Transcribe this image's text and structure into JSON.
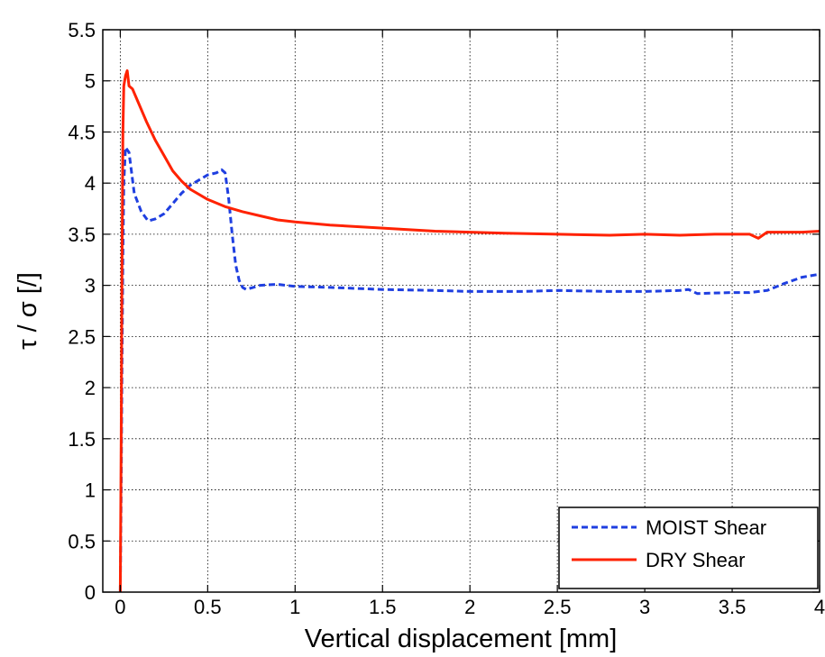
{
  "chart_data": {
    "type": "line",
    "title": "",
    "xlabel": "Vertical displacement [mm]",
    "ylabel": "τ / σ [/]",
    "xlim": [
      -0.1,
      4
    ],
    "ylim": [
      0,
      5.5
    ],
    "grid": true,
    "legend_position": "bottom-right",
    "x_ticks": [
      {
        "value": 0,
        "label": "0"
      },
      {
        "value": 0.5,
        "label": "0.5"
      },
      {
        "value": 1,
        "label": "1"
      },
      {
        "value": 1.5,
        "label": "1.5"
      },
      {
        "value": 2,
        "label": "2"
      },
      {
        "value": 2.5,
        "label": "2.5"
      },
      {
        "value": 3,
        "label": "3"
      },
      {
        "value": 3.5,
        "label": "3.5"
      },
      {
        "value": 4,
        "label": "4"
      }
    ],
    "y_ticks": [
      {
        "value": 0,
        "label": "0"
      },
      {
        "value": 0.5,
        "label": "0.5"
      },
      {
        "value": 1,
        "label": "1"
      },
      {
        "value": 1.5,
        "label": "1.5"
      },
      {
        "value": 2,
        "label": "2"
      },
      {
        "value": 2.5,
        "label": "2.5"
      },
      {
        "value": 3,
        "label": "3"
      },
      {
        "value": 3.5,
        "label": "3.5"
      },
      {
        "value": 4,
        "label": "4"
      },
      {
        "value": 4.5,
        "label": "4.5"
      },
      {
        "value": 5,
        "label": "5"
      },
      {
        "value": 5.5,
        "label": "5.5"
      }
    ],
    "series": [
      {
        "name": "MOIST Shear",
        "color": "#1f3fe0",
        "dash": "dashed",
        "x": [
          0,
          0.005,
          0.01,
          0.015,
          0.02,
          0.03,
          0.05,
          0.08,
          0.12,
          0.16,
          0.2,
          0.25,
          0.3,
          0.35,
          0.4,
          0.45,
          0.5,
          0.55,
          0.58,
          0.6,
          0.62,
          0.64,
          0.66,
          0.68,
          0.7,
          0.72,
          0.74,
          0.76,
          0.8,
          0.9,
          1.0,
          1.2,
          1.5,
          1.8,
          2.0,
          2.3,
          2.5,
          2.8,
          3.0,
          3.2,
          3.25,
          3.3,
          3.5,
          3.6,
          3.7,
          3.8,
          3.9,
          4.0
        ],
        "y": [
          0,
          1.0,
          2.2,
          3.3,
          4.0,
          4.35,
          4.3,
          3.9,
          3.72,
          3.63,
          3.65,
          3.7,
          3.8,
          3.9,
          3.98,
          4.03,
          4.08,
          4.1,
          4.13,
          4.1,
          3.85,
          3.5,
          3.2,
          3.05,
          2.98,
          2.96,
          2.97,
          2.98,
          3.0,
          3.01,
          2.99,
          2.98,
          2.96,
          2.95,
          2.94,
          2.94,
          2.95,
          2.94,
          2.94,
          2.95,
          2.96,
          2.92,
          2.93,
          2.93,
          2.95,
          3.02,
          3.08,
          3.11
        ]
      },
      {
        "name": "DRY Shear",
        "color": "#ff2200",
        "dash": "solid",
        "x": [
          0,
          0.005,
          0.01,
          0.015,
          0.02,
          0.03,
          0.04,
          0.05,
          0.07,
          0.1,
          0.15,
          0.2,
          0.25,
          0.3,
          0.35,
          0.4,
          0.5,
          0.6,
          0.7,
          0.8,
          0.9,
          1.0,
          1.2,
          1.4,
          1.6,
          1.8,
          2.0,
          2.2,
          2.5,
          2.8,
          3.0,
          3.2,
          3.4,
          3.6,
          3.65,
          3.7,
          3.8,
          3.9,
          4.0
        ],
        "y": [
          0,
          1.5,
          3.2,
          4.5,
          4.95,
          5.05,
          5.1,
          4.95,
          4.92,
          4.8,
          4.6,
          4.42,
          4.27,
          4.12,
          4.02,
          3.94,
          3.84,
          3.77,
          3.72,
          3.68,
          3.64,
          3.62,
          3.59,
          3.57,
          3.55,
          3.53,
          3.52,
          3.51,
          3.5,
          3.49,
          3.5,
          3.49,
          3.5,
          3.5,
          3.46,
          3.52,
          3.52,
          3.52,
          3.53
        ]
      }
    ]
  }
}
